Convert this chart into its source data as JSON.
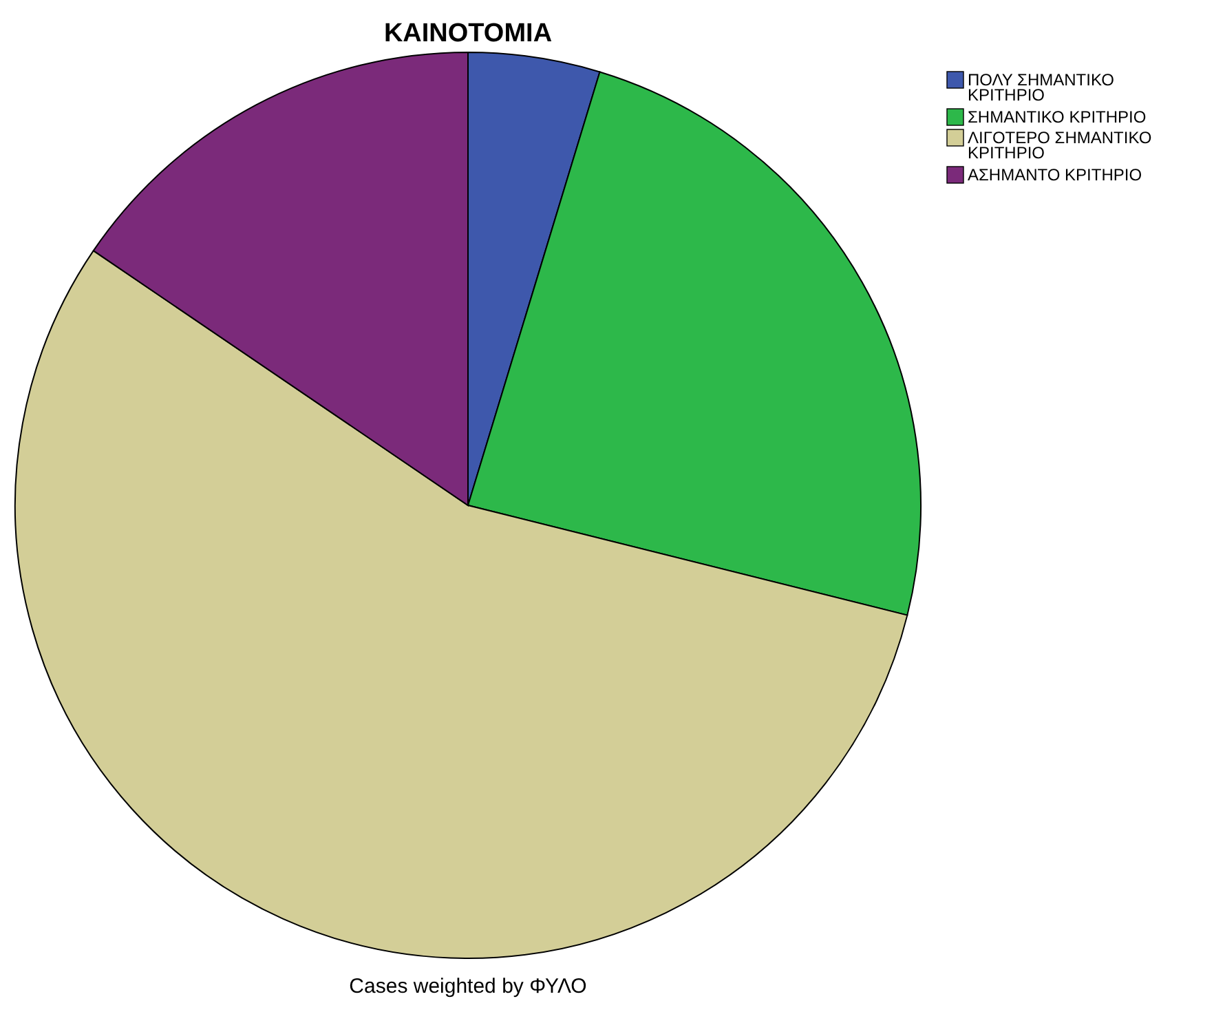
{
  "chart_data": {
    "type": "pie",
    "title": "ΚΑΙΝΟΤΟΜΙΑ",
    "categories": [
      "ΠΟΛΥ ΣΗΜΑΝΤΙΚΟ ΚΡΙΤΗΡΙΟ",
      "ΣΗΜΑΝΤΙΚΟ ΚΡΙΤΗΡΙΟ",
      "ΛΙΓΟΤΕΡΟ ΣΗΜΑΝΤΙΚΟ ΚΡΙΤΗΡΙΟ",
      "ΑΣΗΜΑΝΤΟ ΚΡΙΤΗΡΙΟ"
    ],
    "values": [
      4.7,
      24.2,
      55.6,
      15.5
    ],
    "colors": [
      "#3e58ac",
      "#2db84a",
      "#d3ce97",
      "#7b2a7a"
    ],
    "legend": "top right",
    "annotations": [
      "Cases weighted by ΦΥΛΟ"
    ]
  }
}
